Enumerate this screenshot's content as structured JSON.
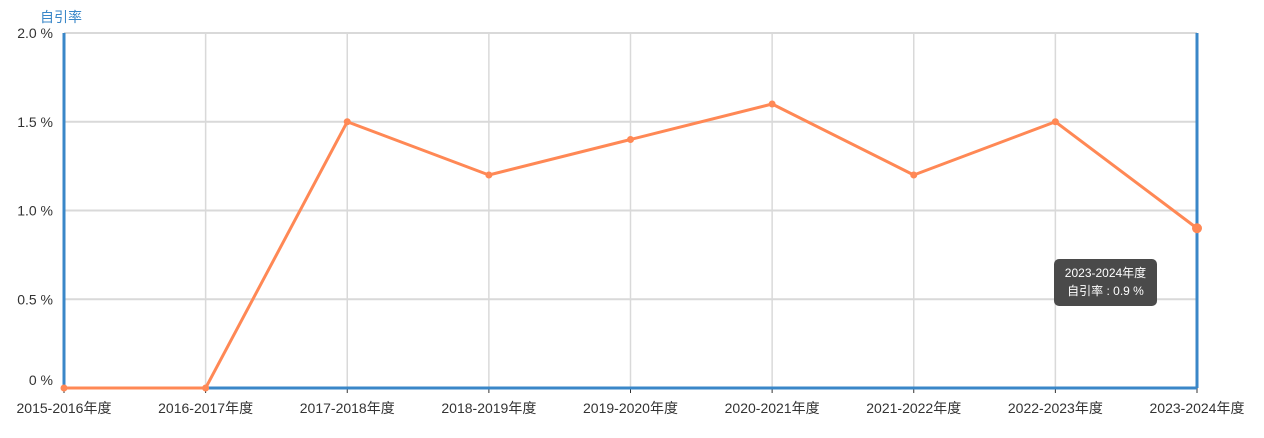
{
  "chart_data": {
    "type": "line",
    "ylabel": "自引率",
    "categories": [
      "2015-2016年度",
      "2016-2017年度",
      "2017-2018年度",
      "2018-2019年度",
      "2019-2020年度",
      "2020-2021年度",
      "2021-2022年度",
      "2022-2023年度",
      "2023-2024年度"
    ],
    "series": [
      {
        "values": [
          0,
          0,
          1.5,
          1.2,
          1.4,
          1.6,
          1.2,
          1.5,
          0.9
        ]
      }
    ],
    "ylim": [
      0,
      2.0
    ],
    "yticks": [
      "0 %",
      "0.5 %",
      "1.0 %",
      "1.5 %",
      "2.0 %"
    ],
    "ytick_values": [
      0,
      0.5,
      1.0,
      1.5,
      2.0
    ],
    "grid": true,
    "colors": {
      "line": "#ff8855",
      "axis": "#3a87c8",
      "grid": "#d9d9d9"
    }
  },
  "tooltip": {
    "title": "2023-2024年度",
    "text": "自引率 : 0.9 %"
  }
}
